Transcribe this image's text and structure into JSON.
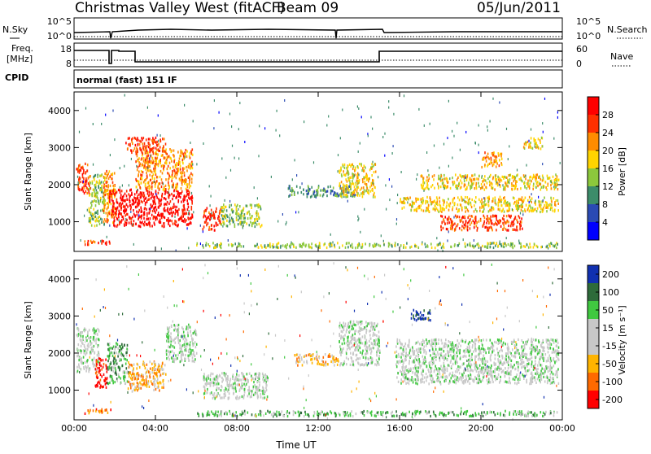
{
  "header": {
    "title": "Christmas Valley West (fitACF)",
    "beam": "Beam 09",
    "date": "05/Jun/2011"
  },
  "strips": {
    "nsky_label": "N.Sky",
    "nsky_ticks": [
      "10^5",
      "10^0"
    ],
    "nsearch_label": "N.Search",
    "nsearch_ticks": [
      "10^5",
      "10^0"
    ],
    "freq_label_1": "Freq.",
    "freq_label_2": "[MHz]",
    "freq_ticks": [
      "18",
      "8"
    ],
    "nave_label": "Nave",
    "nave_ticks": [
      "60",
      "0"
    ],
    "cpid_label": "CPID",
    "cpid_value": "normal (fast) 151 IF"
  },
  "chart_data": [
    {
      "type": "heatmap",
      "name": "power-panel",
      "ylabel": "Slant Range [km]",
      "y_ticks": [
        "1000",
        "2000",
        "3000",
        "4000"
      ],
      "ylim": [
        200,
        4500
      ],
      "x_ticks": [
        "00:00",
        "04:00",
        "08:00",
        "12:00",
        "16:00",
        "20:00",
        "00:00"
      ],
      "xlim_hours": [
        0,
        24
      ],
      "colorbar": {
        "label": "Power [dB]",
        "ticks": [
          "4",
          "8",
          "12",
          "16",
          "20",
          "24",
          "28"
        ],
        "colors": [
          "#0000ff",
          "#2a4ab4",
          "#3c8c6a",
          "#8cc83c",
          "#ffd400",
          "#ff8c00",
          "#ff3000",
          "#ff0000"
        ]
      },
      "regions": [
        {
          "t": [
            0.1,
            0.8
          ],
          "r": [
            1800,
            2600
          ],
          "level": 6
        },
        {
          "t": [
            0.7,
            1.5
          ],
          "r": [
            900,
            2300
          ],
          "level": 3
        },
        {
          "t": [
            1.4,
            2.0
          ],
          "r": [
            1000,
            2400
          ],
          "level": 5
        },
        {
          "t": [
            1.7,
            5.8
          ],
          "r": [
            900,
            1900
          ],
          "level": 7
        },
        {
          "t": [
            3.0,
            5.8
          ],
          "r": [
            1900,
            3000
          ],
          "level": 5
        },
        {
          "t": [
            2.5,
            4.5
          ],
          "r": [
            2900,
            3300
          ],
          "level": 6
        },
        {
          "t": [
            6.3,
            7.2
          ],
          "r": [
            800,
            1400
          ],
          "level": 6
        },
        {
          "t": [
            7.2,
            9.2
          ],
          "r": [
            900,
            1500
          ],
          "level": 3
        },
        {
          "t": [
            10.5,
            13.8
          ],
          "r": [
            1700,
            2000
          ],
          "level": 2
        },
        {
          "t": [
            13.0,
            14.8
          ],
          "r": [
            1700,
            2600
          ],
          "level": 4
        },
        {
          "t": [
            16.0,
            23.8
          ],
          "r": [
            1300,
            1700
          ],
          "level": 4
        },
        {
          "t": [
            17.0,
            23.8
          ],
          "r": [
            1900,
            2300
          ],
          "level": 4
        },
        {
          "t": [
            18.0,
            22.0
          ],
          "r": [
            800,
            1200
          ],
          "level": 6
        },
        {
          "t": [
            20.0,
            21.0
          ],
          "r": [
            2500,
            2900
          ],
          "level": 5
        },
        {
          "t": [
            22.0,
            23.0
          ],
          "r": [
            3000,
            3300
          ],
          "level": 4
        },
        {
          "t": [
            0.5,
            1.8
          ],
          "r": [
            400,
            520
          ],
          "level": 6
        },
        {
          "t": [
            6.0,
            23.8
          ],
          "r": [
            330,
            460
          ],
          "level": 3
        }
      ]
    },
    {
      "type": "heatmap",
      "name": "velocity-panel",
      "ylabel": "Slant Range [km]",
      "y_ticks": [
        "1000",
        "2000",
        "3000",
        "4000"
      ],
      "ylim": [
        200,
        4500
      ],
      "x_ticks": [
        "00:00",
        "04:00",
        "08:00",
        "12:00",
        "16:00",
        "20:00",
        "00:00"
      ],
      "xlim_hours": [
        0,
        24
      ],
      "xlabel": "Time UT",
      "colorbar": {
        "label": "Velocity [m s⁻¹]",
        "ticks": [
          "200",
          "100",
          "50",
          "15",
          "-15",
          "-50",
          "-100",
          "-200"
        ],
        "colors": [
          "#1030b0",
          "#2e6b3a",
          "#40c840",
          "#c8c8c8",
          "#c8c8c8",
          "#ffb400",
          "#ff6a00",
          "#ff0000"
        ]
      },
      "regions": [
        {
          "t": [
            0.1,
            1.2
          ],
          "r": [
            1500,
            2700
          ],
          "level": 3
        },
        {
          "t": [
            1.0,
            1.6
          ],
          "r": [
            1100,
            1900
          ],
          "level": 7
        },
        {
          "t": [
            1.6,
            2.6
          ],
          "r": [
            1200,
            2300
          ],
          "level": 2
        },
        {
          "t": [
            2.6,
            4.5
          ],
          "r": [
            1000,
            1800
          ],
          "level": 5
        },
        {
          "t": [
            4.5,
            6.0
          ],
          "r": [
            1800,
            2800
          ],
          "level": 3
        },
        {
          "t": [
            6.3,
            9.5
          ],
          "r": [
            800,
            1500
          ],
          "level": 3
        },
        {
          "t": [
            10.8,
            13.0
          ],
          "r": [
            1700,
            2000
          ],
          "level": 5
        },
        {
          "t": [
            13.0,
            15.0
          ],
          "r": [
            1700,
            2900
          ],
          "level": 3
        },
        {
          "t": [
            15.8,
            23.8
          ],
          "r": [
            1200,
            2400
          ],
          "level": 3
        },
        {
          "t": [
            16.5,
            17.5
          ],
          "r": [
            2900,
            3200
          ],
          "level": 0
        },
        {
          "t": [
            0.5,
            1.8
          ],
          "r": [
            400,
            520
          ],
          "level": 6
        },
        {
          "t": [
            6.0,
            23.8
          ],
          "r": [
            330,
            470
          ],
          "level": 2
        }
      ]
    }
  ]
}
